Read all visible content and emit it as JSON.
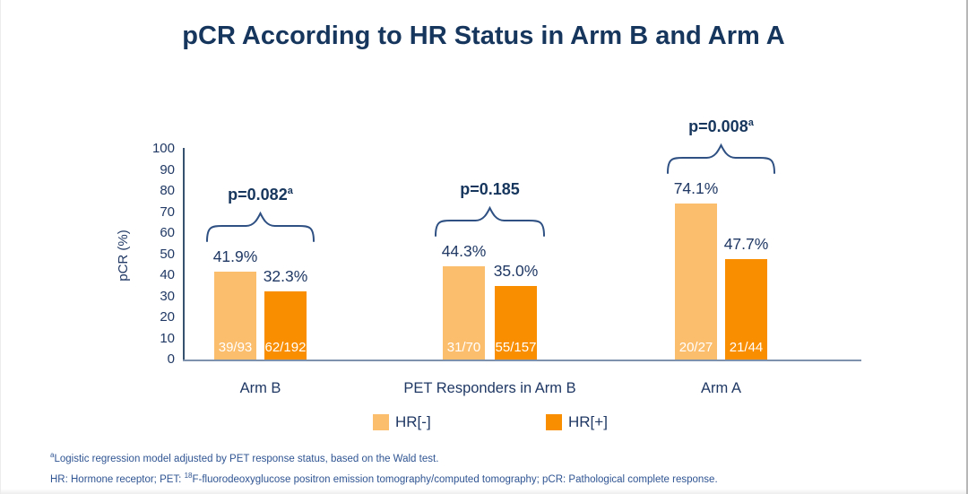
{
  "title": "pCR According to HR Status in Arm B and Arm A",
  "y_axis": {
    "label": "pCR (%)"
  },
  "legend": [
    {
      "label": "HR[-]",
      "color": "#FBBE6D"
    },
    {
      "label": "HR[+]",
      "color": "#F98E00"
    }
  ],
  "footnotes": {
    "note1_sup": "a",
    "note1": "Logistic regression model adjusted by PET response status, based on the Wald test.",
    "note2_pre": "HR: Hormone receptor; PET: ",
    "note2_sup": "18",
    "note2_post": "F-fluorodeoxyglucose positron emission tomography/computed tomography; pCR: Pathological complete response."
  },
  "colors": {
    "navy_text": "#1F3864",
    "title_navy": "#17365D",
    "hr_negative": "#FBBE6D",
    "hr_positive": "#F98E00",
    "y_axis_line": "#365070",
    "x_axis_line": "#7E92AE",
    "brace": "#2E5082"
  },
  "chart_data": {
    "type": "bar",
    "title": "pCR According to HR Status in Arm B and Arm A",
    "xlabel": "",
    "ylabel": "pCR (%)",
    "ylim": [
      0,
      100
    ],
    "yticks": [
      0,
      10,
      20,
      30,
      40,
      50,
      60,
      70,
      80,
      90,
      100
    ],
    "grid": false,
    "legend_position": "bottom",
    "categories": [
      "Arm B",
      "PET Responders in Arm B",
      "Arm A"
    ],
    "series": [
      {
        "name": "HR[-]",
        "color": "#FBBE6D",
        "values": [
          41.9,
          44.3,
          74.1
        ],
        "counts": [
          "39/93",
          "31/70",
          "20/27"
        ]
      },
      {
        "name": "HR[+]",
        "color": "#F98E00",
        "values": [
          32.3,
          35.0,
          47.7
        ],
        "counts": [
          "62/192",
          "55/157",
          "21/44"
        ]
      }
    ],
    "p_values": [
      {
        "text": "p=0.082",
        "sup": "a"
      },
      {
        "text": "p=0.185",
        "sup": ""
      },
      {
        "text": "p=0.008",
        "sup": "a"
      }
    ]
  }
}
